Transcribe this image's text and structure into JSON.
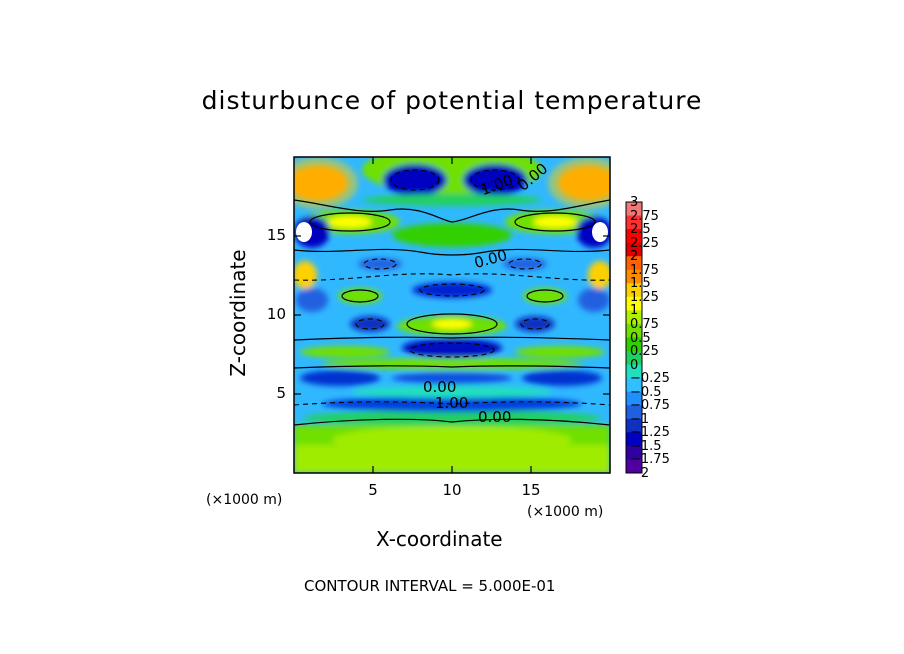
{
  "chart_data": {
    "type": "heatmap",
    "title": "disturbunce of potential temperature",
    "xlabel": "X-coordinate",
    "ylabel": "Z-coordinate",
    "x_unit": "(×1000 m)",
    "y_unit": "(×1000 m)",
    "xlim": [
      0,
      20
    ],
    "ylim": [
      0,
      20
    ],
    "xticks": [
      "5",
      "10",
      "15"
    ],
    "yticks": [
      "5",
      "10",
      "15"
    ],
    "contour_interval_text": "CONTOUR INTERVAL = 5.000E-01",
    "contour_labels": [
      "1.00",
      "0.00",
      "0.00",
      "0.00",
      "1.00",
      "0.00"
    ],
    "colorbar": {
      "min": -2,
      "max": 3,
      "labels": [
        "3",
        "2.75",
        "2.5",
        "2.25",
        "2",
        "1.75",
        "1.5",
        "1.25",
        "1",
        "0.75",
        "0.5",
        "0.25",
        "0",
        "−0.25",
        "−0.5",
        "−0.75",
        "−1",
        "−1.25",
        "−1.5",
        "−1.75",
        "−2"
      ],
      "colors": [
        "#f07878",
        "#ff3030",
        "#ff0000",
        "#e00000",
        "#ff6000",
        "#ff8c00",
        "#ffd000",
        "#ffff00",
        "#b0f000",
        "#70e000",
        "#30d000",
        "#20d060",
        "#20e0c0",
        "#30c0ff",
        "#2090ff",
        "#2060e0",
        "#1030c0",
        "#0000c0",
        "#3000a0",
        "#5000a0"
      ]
    },
    "grid": false
  }
}
